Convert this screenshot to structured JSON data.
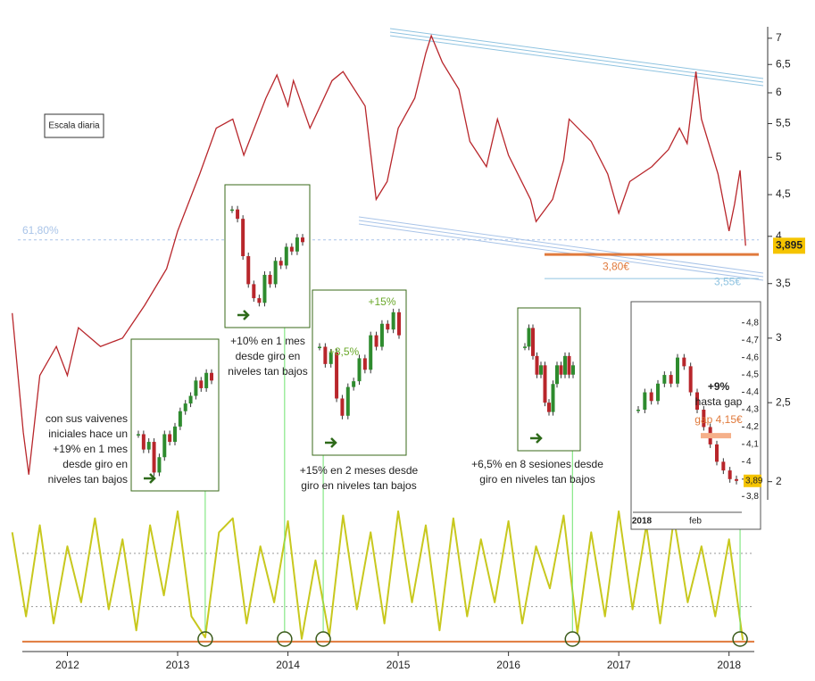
{
  "chart_data": [
    {
      "type": "line",
      "log_scale": true,
      "xlim": [
        2011.47,
        2018.31
      ],
      "ylim": [
        1.9,
        7.14
      ],
      "xticks": [
        2012,
        2013,
        2014,
        2015,
        2016,
        2017,
        2018
      ],
      "yticks": [
        2,
        {
          "value": 2.5,
          "label": "2,5"
        },
        3,
        {
          "value": 3.5,
          "label": "3,5"
        },
        4,
        {
          "value": 4.5,
          "label": "4,5"
        },
        5,
        {
          "value": 5.5,
          "label": "5,5"
        },
        6,
        {
          "value": 6.5,
          "label": "6,5"
        },
        7
      ],
      "series": [
        {
          "color": "#b8262b",
          "x": [
            2011.5,
            2011.6,
            2011.65,
            2011.75,
            2011.9,
            2012.0,
            2012.1,
            2012.3,
            2012.5,
            2012.7,
            2012.9,
            2013.0,
            2013.2,
            2013.35,
            2013.5,
            2013.6,
            2013.8,
            2013.9,
            2014.0,
            2014.05,
            2014.2,
            2014.4,
            2014.5,
            2014.7,
            2014.8,
            2014.9,
            2015.0,
            2015.15,
            2015.25,
            2015.3,
            2015.4,
            2015.55,
            2015.65,
            2015.8,
            2015.9,
            2016.0,
            2016.2,
            2016.25,
            2016.4,
            2016.5,
            2016.55,
            2016.75,
            2016.9,
            2017.0,
            2017.1,
            2017.3,
            2017.45,
            2017.55,
            2017.62,
            2017.7,
            2017.75,
            2017.9,
            2018.0,
            2018.05,
            2018.1,
            2018.15
          ],
          "values": [
            3.22,
            2.3,
            2.04,
            2.7,
            2.93,
            2.7,
            3.09,
            2.93,
            3.0,
            3.29,
            3.65,
            4.06,
            4.77,
            5.43,
            5.57,
            5.03,
            5.91,
            6.31,
            5.78,
            6.21,
            5.43,
            6.21,
            6.37,
            5.78,
            4.44,
            4.67,
            5.43,
            5.91,
            6.71,
            7.05,
            6.54,
            6.06,
            5.23,
            4.87,
            5.57,
            5.03,
            4.44,
            4.17,
            4.44,
            4.96,
            5.57,
            5.23,
            4.77,
            4.27,
            4.67,
            4.87,
            5.11,
            5.43,
            5.2,
            6.37,
            5.57,
            4.77,
            4.06,
            4.38,
            4.82,
            3.895
          ]
        }
      ],
      "last_price": {
        "value": 3.895,
        "label": "3,895"
      },
      "levels": [
        {
          "value": 3.96,
          "label": "61,80%",
          "color": "#a9c4e8"
        },
        {
          "value": 3.8,
          "label": "3,80€",
          "color": "#e07a3c"
        },
        {
          "value": 3.55,
          "label": "3,55€",
          "color": "#8fc3e0"
        }
      ],
      "note": "Escala diaria"
    },
    {
      "type": "oscillator",
      "xlim": [
        2011.47,
        2018.31
      ],
      "ylim": [
        0,
        100
      ],
      "color": "#c8c81e",
      "hlines": [
        65,
        27
      ],
      "baseline": 2,
      "x": [
        2011.5,
        2011.625,
        2011.75,
        2011.875,
        2012.0,
        2012.125,
        2012.25,
        2012.375,
        2012.5,
        2012.625,
        2012.75,
        2012.875,
        2013.0,
        2013.125,
        2013.25,
        2013.375,
        2013.5,
        2013.625,
        2013.75,
        2013.875,
        2014.0,
        2014.125,
        2014.25,
        2014.375,
        2014.5,
        2014.625,
        2014.75,
        2014.875,
        2015.0,
        2015.125,
        2015.25,
        2015.375,
        2015.5,
        2015.625,
        2015.75,
        2015.875,
        2016.0,
        2016.125,
        2016.25,
        2016.375,
        2016.5,
        2016.625,
        2016.75,
        2016.875,
        2017.0,
        2017.125,
        2017.25,
        2017.375,
        2017.5,
        2017.625,
        2017.75,
        2017.875,
        2018.0,
        2018.125
      ],
      "values": [
        80,
        20,
        85,
        15,
        70,
        30,
        90,
        25,
        75,
        10,
        85,
        35,
        95,
        20,
        5,
        80,
        90,
        15,
        70,
        30,
        88,
        4,
        60,
        6,
        92,
        25,
        80,
        15,
        95,
        30,
        85,
        10,
        90,
        20,
        75,
        30,
        88,
        15,
        70,
        40,
        92,
        8,
        80,
        20,
        95,
        25,
        85,
        15,
        90,
        30,
        70,
        20,
        75,
        3
      ],
      "signals": [
        2013.25,
        2013.97,
        2014.32,
        2016.58,
        2018.1
      ]
    }
  ],
  "insets": [
    {
      "ylim": [
        3.9,
        5.6
      ],
      "values": [
        4.5,
        4.3,
        4.4,
        4.0,
        4.2,
        4.5,
        4.4,
        4.6,
        4.8,
        4.9,
        5.0,
        5.2,
        5.1,
        5.3,
        5.2
      ],
      "text": [
        "con sus vaivenes",
        "iniciales hace un",
        "+19% en 1 mes",
        "desde giro en",
        "niveles tan bajos"
      ]
    },
    {
      "ylim": [
        3.9,
        6.5
      ],
      "values": [
        6.2,
        6.0,
        5.2,
        4.6,
        4.3,
        4.2,
        4.8,
        4.6,
        5.1,
        5.0,
        5.4,
        5.3,
        5.6,
        5.5
      ],
      "text": [
        "+10% en 1 mes",
        "desde giro en",
        "niveles tan bajos"
      ]
    },
    {
      "ylim": [
        3.9,
        6.4
      ],
      "values": [
        5.6,
        5.3,
        5.5,
        4.7,
        4.4,
        4.9,
        5.0,
        5.4,
        5.2,
        5.8,
        5.6,
        6.0,
        5.9,
        6.2,
        5.8
      ],
      "text": [
        "+15% en 2 meses desde",
        "giro en niveles tan bajos"
      ],
      "inner": [
        "+8,5%",
        "+15%"
      ]
    },
    {
      "ylim": [
        4.0,
        5.3
      ],
      "values": [
        5.0,
        5.2,
        4.9,
        4.7,
        4.8,
        4.4,
        4.3,
        4.6,
        4.8,
        4.7,
        4.9,
        4.7,
        4.8
      ],
      "text": [
        "+6,5% en 8 sesiones desde",
        "giro en niveles tan bajos"
      ]
    },
    {
      "ylim": [
        3.75,
        4.85
      ],
      "values": [
        4.3,
        4.4,
        4.35,
        4.45,
        4.5,
        4.45,
        4.6,
        4.55,
        4.4,
        4.3,
        4.2,
        4.1,
        4.0,
        3.95,
        3.9,
        3.89
      ],
      "yticks": [
        {
          "value": 3.8,
          "label": "3,8"
        },
        {
          "value": 3.9,
          "label": "3,9"
        },
        4,
        {
          "value": 4.1,
          "label": "4,1"
        },
        {
          "value": 4.2,
          "label": "4,2"
        },
        {
          "value": 4.3,
          "label": "4,3"
        },
        {
          "value": 4.4,
          "label": "4,4"
        },
        {
          "value": 4.5,
          "label": "4,5"
        },
        {
          "value": 4.6,
          "label": "4,6"
        },
        {
          "value": 4.7,
          "label": "4,7"
        },
        {
          "value": 4.8,
          "label": "4,8"
        }
      ],
      "xlabels": [
        "2018",
        "feb"
      ],
      "last": {
        "value": 3.89,
        "label": "3,89"
      },
      "gap": {
        "value": 4.15,
        "label": "gap 4,15€"
      },
      "text": [
        "+9%",
        "hasta gap"
      ]
    }
  ]
}
